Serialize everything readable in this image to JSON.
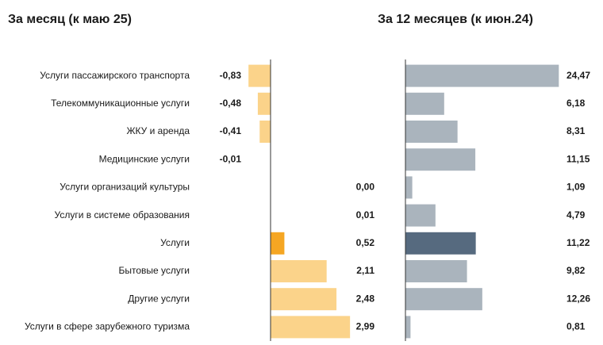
{
  "chart_data": [
    {
      "type": "bar",
      "orientation": "horizontal",
      "title": "За месяц (к маю 25)",
      "categories": [
        "Услуги пассажирского транспорта",
        "Телекоммуникационные услуги",
        "ЖКУ и аренда",
        "Медицинские услуги",
        "Услуги организаций культуры",
        "Услуги в системе образования",
        "Услуги",
        "Бытовые услуги",
        "Другие услуги",
        "Услуги в сфере зарубежного туризма"
      ],
      "values": [
        -0.83,
        -0.48,
        -0.41,
        -0.01,
        0.0,
        0.01,
        0.52,
        2.11,
        2.48,
        2.99
      ],
      "value_labels": [
        "-0,83",
        "-0,48",
        "-0,41",
        "-0,01",
        "0,00",
        "0,01",
        "0,52",
        "2,11",
        "2,48",
        "2,99"
      ],
      "highlight_index": 6,
      "colors": {
        "bar": "#fbd38a",
        "highlight": "#f5a623",
        "axis": "#333333"
      },
      "xlim": [
        -0.9,
        3.1
      ]
    },
    {
      "type": "bar",
      "orientation": "horizontal",
      "title": "За 12 месяцев (к июн.24)",
      "categories": [
        "Услуги пассажирского транспорта",
        "Телекоммуникационные услуги",
        "ЖКУ и аренда",
        "Медицинские услуги",
        "Услуги организаций культуры",
        "Услуги в системе образования",
        "Услуги",
        "Бытовые услуги",
        "Другие услуги",
        "Услуги в сфере зарубежного туризма"
      ],
      "values": [
        24.47,
        6.18,
        8.31,
        11.15,
        1.09,
        4.79,
        11.22,
        9.82,
        12.26,
        0.81
      ],
      "value_labels": [
        "24,47",
        "6,18",
        "8,31",
        "11,15",
        "1,09",
        "4,79",
        "11,22",
        "9,82",
        "12,26",
        "0,81"
      ],
      "highlight_index": 6,
      "colors": {
        "bar": "#aab4bd",
        "highlight": "#566a7f",
        "axis": "#333333"
      },
      "xlim": [
        0,
        25
      ]
    }
  ]
}
